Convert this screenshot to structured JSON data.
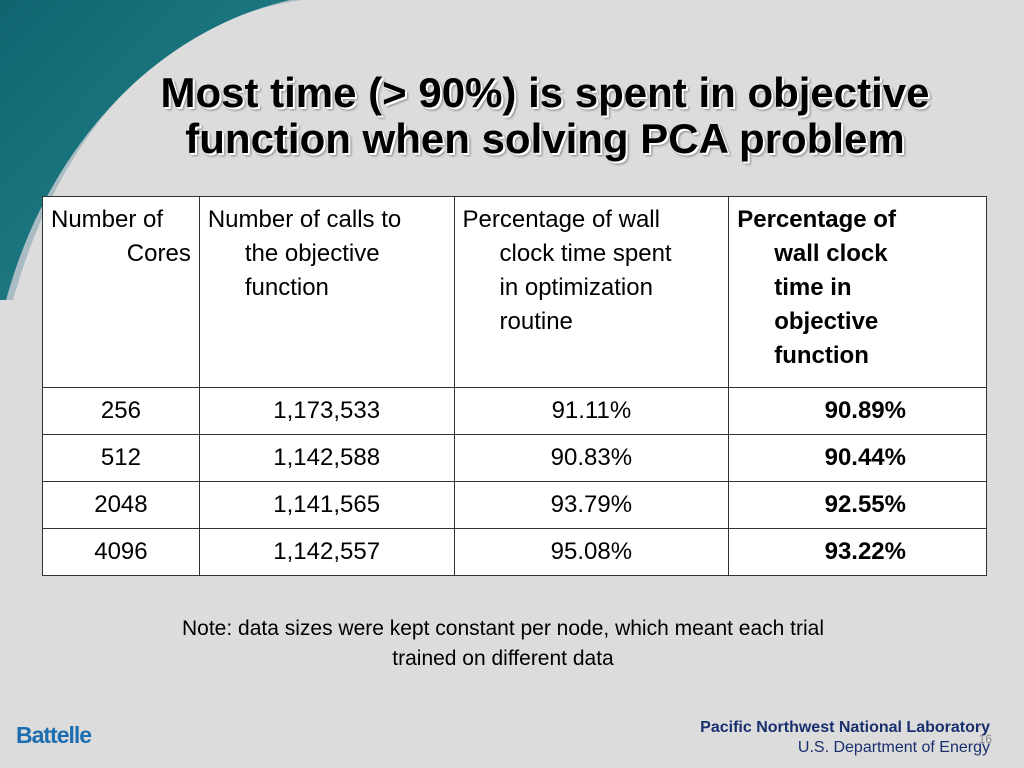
{
  "slide": {
    "title_line1": "Most time (> 90%) is spent in objective",
    "title_line2": "function when solving PCA problem",
    "page_number": "16"
  },
  "table": {
    "headers": [
      [
        "Number of",
        "Cores"
      ],
      [
        "Number of calls to",
        "the objective",
        "function"
      ],
      [
        "Percentage of wall",
        "clock time spent",
        "in optimization",
        "routine"
      ],
      [
        "Percentage of",
        "wall clock",
        "time in",
        "objective",
        "function"
      ]
    ],
    "rows": [
      [
        "256",
        "1,173,533",
        "91.11%",
        "90.89%"
      ],
      [
        "512",
        "1,142,588",
        "90.83%",
        "90.44%"
      ],
      [
        "2048",
        "1,141,565",
        "93.79%",
        "92.55%"
      ],
      [
        "4096",
        "1,142,557",
        "95.08%",
        "93.22%"
      ]
    ]
  },
  "note": {
    "line1": "Note: data sizes were kept constant per node, which meant each trial",
    "line2": "trained on different data"
  },
  "footer": {
    "left_logo": "Battelle",
    "right_line1": "Pacific Northwest National Laboratory",
    "right_line2": "U.S. Department of Energy"
  },
  "colors": {
    "background": "#dcdcdc",
    "swoosh_outer": "#a9bcc4",
    "swoosh_inner": "#166a78",
    "battelle_blue": "#1d6eb0",
    "pnnl_navy": "#1a2f6e"
  }
}
